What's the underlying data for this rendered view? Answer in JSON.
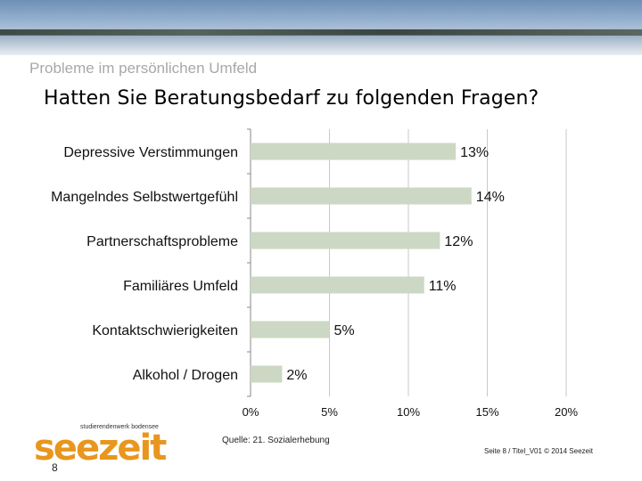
{
  "header": {
    "section_title": "Probleme im persönlichen Umfeld",
    "title": "Hatten Sie Beratungsbedarf zu folgenden Fragen?"
  },
  "chart_data": {
    "type": "bar",
    "orientation": "horizontal",
    "title": "Hatten Sie Beratungsbedarf zu folgenden Fragen?",
    "categories": [
      "Depressive Verstimmungen",
      "Mangelndes Selbstwertgefühl",
      "Partnerschaftsprobleme",
      "Familiäres Umfeld",
      "Kontaktschwierigkeiten",
      "Alkohol / Drogen"
    ],
    "values": [
      13,
      14,
      12,
      11,
      5,
      2
    ],
    "value_labels": [
      "13%",
      "14%",
      "12%",
      "11%",
      "5%",
      "2%"
    ],
    "xlim": [
      0,
      20
    ],
    "ticks": [
      0,
      5,
      10,
      15,
      20
    ],
    "tick_labels": [
      "0%",
      "5%",
      "10%",
      "15%",
      "20%"
    ],
    "grid": true,
    "bar_color": "#ccd8c3"
  },
  "footer": {
    "source": "Quelle: 21. Sozialerhebung",
    "logo_subtitle": "studierendenwerk bodensee",
    "logo_text": "seezeit",
    "page_number": "8",
    "page_info": "Seite 8 / Titel_V01 © 2014 Seezeit"
  },
  "colors": {
    "bar": "#ccd8c3",
    "gridline": "#c8c8c8",
    "axis": "#888888",
    "logo": "#e8961e"
  }
}
